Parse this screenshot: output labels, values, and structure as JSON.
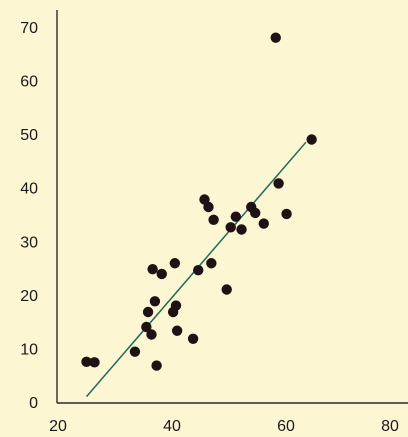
{
  "chart_data": {
    "type": "scatter",
    "title": "",
    "xlabel": "",
    "ylabel": "",
    "xlim": [
      20,
      80
    ],
    "ylim": [
      0,
      70
    ],
    "x_ticks": [
      20,
      40,
      60,
      80
    ],
    "y_ticks": [
      0,
      10,
      20,
      30,
      40,
      50,
      60,
      70
    ],
    "x_tick_labels": [
      "20",
      "40",
      "60",
      "80"
    ],
    "y_tick_labels": [
      "0",
      "10",
      "20",
      "30",
      "40",
      "50",
      "60",
      "70"
    ],
    "grid": false,
    "legend": "none",
    "colors": {
      "background": "#fdf6d2",
      "point": "#1e1215",
      "trend_line": "#1f6b5a",
      "axis": "#2a2a2a"
    },
    "points": [
      {
        "x": 25.0,
        "y": 7.5
      },
      {
        "x": 26.4,
        "y": 7.4
      },
      {
        "x": 33.5,
        "y": 9.4
      },
      {
        "x": 35.5,
        "y": 14.0
      },
      {
        "x": 35.8,
        "y": 16.8
      },
      {
        "x": 36.4,
        "y": 12.6
      },
      {
        "x": 36.6,
        "y": 24.8
      },
      {
        "x": 37.0,
        "y": 18.8
      },
      {
        "x": 37.3,
        "y": 6.8
      },
      {
        "x": 38.2,
        "y": 23.9
      },
      {
        "x": 40.2,
        "y": 16.8
      },
      {
        "x": 40.7,
        "y": 18.0
      },
      {
        "x": 40.5,
        "y": 25.9
      },
      {
        "x": 40.9,
        "y": 13.3
      },
      {
        "x": 43.7,
        "y": 11.8
      },
      {
        "x": 44.6,
        "y": 24.6
      },
      {
        "x": 45.7,
        "y": 37.8
      },
      {
        "x": 46.4,
        "y": 36.4
      },
      {
        "x": 46.9,
        "y": 25.9
      },
      {
        "x": 47.3,
        "y": 34.0
      },
      {
        "x": 49.6,
        "y": 21.0
      },
      {
        "x": 50.3,
        "y": 32.6
      },
      {
        "x": 51.2,
        "y": 34.6
      },
      {
        "x": 52.2,
        "y": 32.2
      },
      {
        "x": 53.9,
        "y": 36.4
      },
      {
        "x": 54.6,
        "y": 35.3
      },
      {
        "x": 56.1,
        "y": 33.3
      },
      {
        "x": 58.2,
        "y": 68.0
      },
      {
        "x": 58.7,
        "y": 40.8
      },
      {
        "x": 60.1,
        "y": 35.1
      },
      {
        "x": 64.5,
        "y": 49.0
      }
    ],
    "trend_line": [
      {
        "x": 25.0,
        "y": 1.0
      },
      {
        "x": 63.5,
        "y": 48.5
      }
    ]
  }
}
